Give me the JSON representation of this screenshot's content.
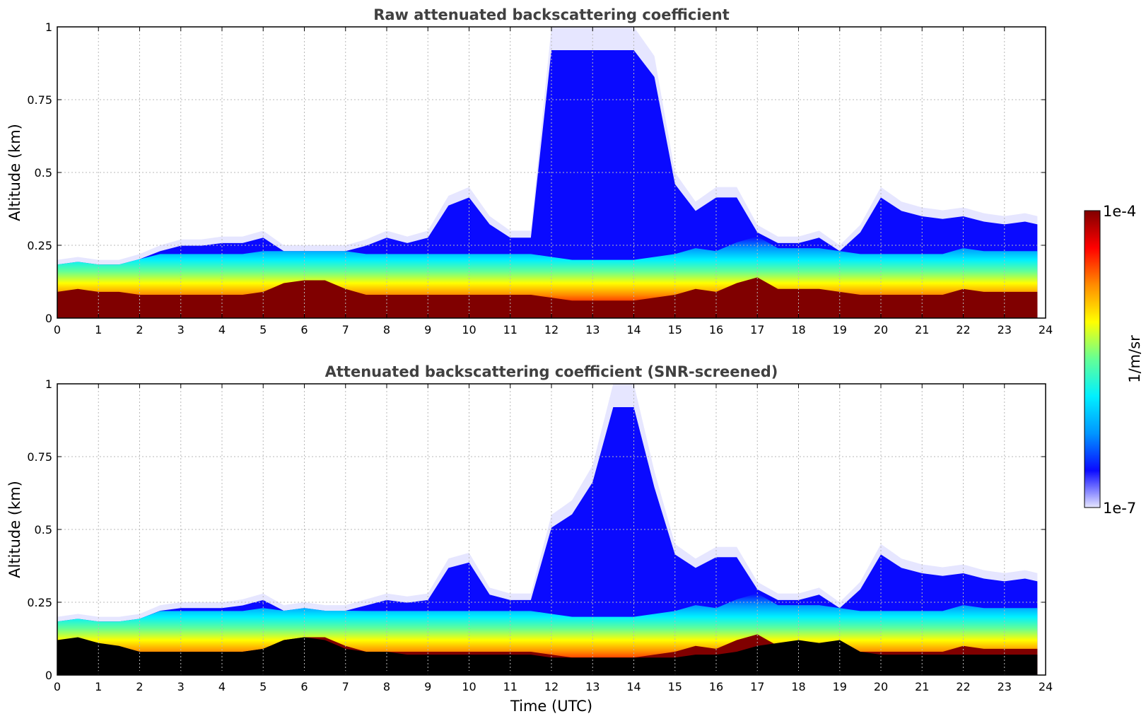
{
  "chart_data": [
    {
      "type": "heatmap",
      "title": "Raw attenuated backscattering coefficient",
      "xlabel": "",
      "ylabel": "Altitude (km)",
      "xlim": [
        0,
        24
      ],
      "ylim": [
        0,
        1
      ],
      "x_ticks": [
        "0",
        "1",
        "2",
        "3",
        "4",
        "5",
        "6",
        "7",
        "8",
        "9",
        "10",
        "11",
        "12",
        "13",
        "14",
        "15",
        "16",
        "17",
        "18",
        "19",
        "20",
        "21",
        "22",
        "23",
        "24"
      ],
      "y_ticks": [
        "0",
        "0.25",
        "0.5",
        "0.75",
        "1"
      ],
      "grid": true,
      "color_scale": "log",
      "data_time_end_utc": 23.8,
      "profile": {
        "time_utc": [
          0,
          0.5,
          1,
          1.5,
          2,
          2.5,
          3,
          3.5,
          4,
          4.5,
          5,
          5.5,
          6,
          6.5,
          7,
          7.5,
          8,
          8.5,
          9,
          9.5,
          10,
          10.5,
          11,
          11.5,
          12,
          12.5,
          13,
          13.5,
          14,
          14.5,
          15,
          15.5,
          16,
          16.5,
          17,
          17.5,
          18,
          18.5,
          19,
          19.5,
          20,
          20.5,
          21,
          21.5,
          22,
          22.5,
          23,
          23.5,
          23.8
        ],
        "layer_top_km": [
          0.2,
          0.21,
          0.2,
          0.2,
          0.22,
          0.25,
          0.27,
          0.27,
          0.28,
          0.28,
          0.3,
          0.25,
          0.25,
          0.25,
          0.25,
          0.27,
          0.3,
          0.28,
          0.3,
          0.42,
          0.45,
          0.35,
          0.3,
          0.3,
          1.0,
          1.0,
          1.0,
          1.0,
          1.0,
          0.9,
          0.5,
          0.4,
          0.45,
          0.45,
          0.32,
          0.28,
          0.28,
          0.3,
          0.25,
          0.32,
          0.45,
          0.4,
          0.38,
          0.37,
          0.38,
          0.36,
          0.35,
          0.36,
          0.35
        ],
        "strong_top_km": [
          0.11,
          0.12,
          0.11,
          0.11,
          0.1,
          0.1,
          0.1,
          0.1,
          0.1,
          0.1,
          0.11,
          0.14,
          0.15,
          0.15,
          0.12,
          0.1,
          0.1,
          0.1,
          0.1,
          0.1,
          0.1,
          0.1,
          0.1,
          0.1,
          0.09,
          0.08,
          0.08,
          0.08,
          0.08,
          0.09,
          0.1,
          0.12,
          0.11,
          0.14,
          0.16,
          0.12,
          0.12,
          0.12,
          0.11,
          0.1,
          0.1,
          0.1,
          0.1,
          0.1,
          0.12,
          0.11,
          0.11,
          0.11,
          0.11
        ]
      }
    },
    {
      "type": "heatmap",
      "title": "Attenuated backscattering coefficient (SNR-screened)",
      "xlabel": "Time (UTC)",
      "ylabel": "Altitude (km)",
      "xlim": [
        0,
        24
      ],
      "ylim": [
        0,
        1
      ],
      "x_ticks": [
        "0",
        "1",
        "2",
        "3",
        "4",
        "5",
        "6",
        "7",
        "8",
        "9",
        "10",
        "11",
        "12",
        "13",
        "14",
        "15",
        "16",
        "17",
        "18",
        "19",
        "20",
        "21",
        "22",
        "23",
        "24"
      ],
      "y_ticks": [
        "0",
        "0.25",
        "0.5",
        "0.75",
        "1"
      ],
      "grid": true,
      "color_scale": "log",
      "data_time_end_utc": 23.8,
      "profile": {
        "time_utc": [
          0,
          0.5,
          1,
          1.5,
          2,
          2.5,
          3,
          3.5,
          4,
          4.5,
          5,
          5.5,
          6,
          6.5,
          7,
          7.5,
          8,
          8.5,
          9,
          9.5,
          10,
          10.5,
          11,
          11.5,
          12,
          12.5,
          13,
          13.5,
          14,
          14.5,
          15,
          15.5,
          16,
          16.5,
          17,
          17.5,
          18,
          18.5,
          19,
          19.5,
          20,
          20.5,
          21,
          21.5,
          22,
          22.5,
          23,
          23.5,
          23.8
        ],
        "layer_top_km": [
          0.2,
          0.21,
          0.2,
          0.2,
          0.21,
          0.24,
          0.25,
          0.25,
          0.25,
          0.26,
          0.28,
          0.24,
          0.25,
          0.24,
          0.24,
          0.26,
          0.28,
          0.27,
          0.28,
          0.4,
          0.42,
          0.3,
          0.28,
          0.28,
          0.55,
          0.6,
          0.72,
          1.0,
          1.0,
          0.7,
          0.45,
          0.4,
          0.44,
          0.44,
          0.32,
          0.28,
          0.28,
          0.3,
          0.25,
          0.32,
          0.45,
          0.4,
          0.38,
          0.37,
          0.38,
          0.36,
          0.35,
          0.36,
          0.35
        ],
        "strong_top_km": [
          0.11,
          0.12,
          0.11,
          0.11,
          0.1,
          0.1,
          0.1,
          0.1,
          0.1,
          0.1,
          0.11,
          0.14,
          0.15,
          0.15,
          0.12,
          0.1,
          0.1,
          0.1,
          0.1,
          0.1,
          0.1,
          0.1,
          0.1,
          0.1,
          0.09,
          0.08,
          0.08,
          0.08,
          0.08,
          0.09,
          0.1,
          0.12,
          0.11,
          0.14,
          0.16,
          0.12,
          0.12,
          0.12,
          0.11,
          0.1,
          0.1,
          0.1,
          0.1,
          0.1,
          0.12,
          0.11,
          0.11,
          0.11,
          0.11
        ],
        "masked_top_km": [
          0.12,
          0.13,
          0.11,
          0.1,
          0.08,
          0.08,
          0.08,
          0.08,
          0.08,
          0.08,
          0.09,
          0.12,
          0.13,
          0.12,
          0.09,
          0.08,
          0.08,
          0.07,
          0.07,
          0.07,
          0.07,
          0.07,
          0.07,
          0.07,
          0.06,
          0.06,
          0.06,
          0.06,
          0.06,
          0.06,
          0.06,
          0.07,
          0.07,
          0.08,
          0.1,
          0.11,
          0.12,
          0.11,
          0.12,
          0.08,
          0.07,
          0.07,
          0.07,
          0.07,
          0.07,
          0.07,
          0.07,
          0.07,
          0.07
        ]
      }
    }
  ],
  "colorbar": {
    "max_label": "1e-4",
    "min_label": "1e-7",
    "unit_label": "1/m/sr",
    "colormap": "jet",
    "scale": "log",
    "range": [
      "1e-7",
      "1e-4"
    ],
    "colors": [
      "#e6e6ff",
      "#0a0aff",
      "#0096ff",
      "#00f0ff",
      "#64ff96",
      "#ffff00",
      "#ff8c00",
      "#ff0000",
      "#800000"
    ],
    "masked_color": "#000000"
  }
}
